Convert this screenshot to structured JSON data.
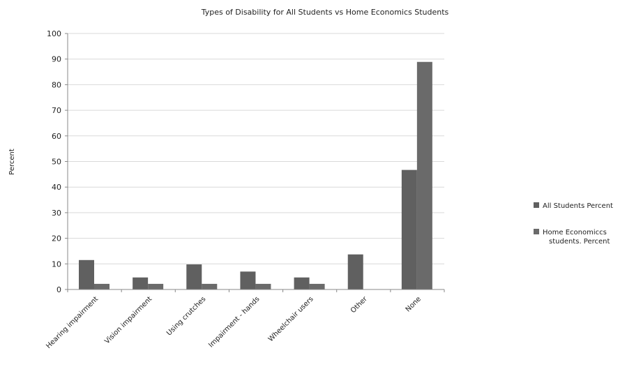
{
  "chart_data": {
    "type": "bar",
    "title": "Types of Disability for All Students vs Home Economics Students",
    "xlabel": "",
    "ylabel": "Percent",
    "ylim": [
      0,
      100
    ],
    "yticks": [
      0,
      10,
      20,
      30,
      40,
      50,
      60,
      70,
      80,
      90,
      100
    ],
    "grid": true,
    "legend_position": "right",
    "categories": [
      "Hearing impairment",
      "Vision impairment",
      "Using crutches",
      "Impairment - hands",
      "Wheelchair users",
      "Other",
      "None"
    ],
    "series": [
      {
        "name": "All Students Percent",
        "color": "#606060",
        "values": [
          11.5,
          4.7,
          9.8,
          7,
          4.7,
          13.7,
          46.7
        ]
      },
      {
        "name": "Home Economiccs students. Percent",
        "color": "#6a6a6a",
        "values": [
          2.2,
          2.2,
          2.2,
          2.2,
          2.2,
          0,
          88.9
        ]
      }
    ]
  }
}
